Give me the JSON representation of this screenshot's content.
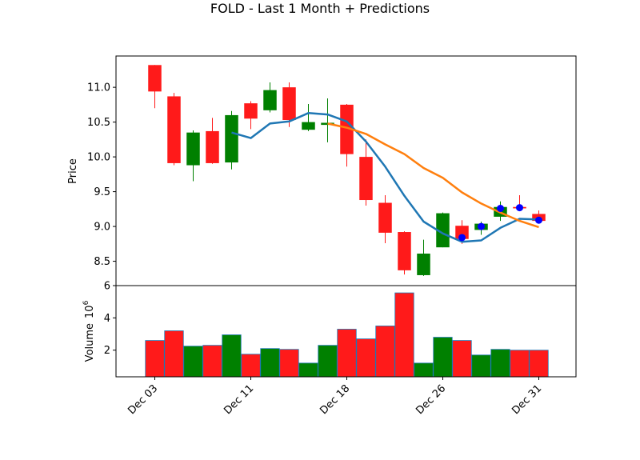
{
  "chart_data": {
    "type": "candlestick",
    "title": "FOLD - Last 1 Month + Predictions",
    "price_panel": {
      "ylabel": "Price",
      "ylim": [
        8.15,
        11.45
      ],
      "yticks": [
        "8.5",
        "9.0",
        "9.5",
        "10.0",
        "10.5",
        "11.0"
      ],
      "ytick_values": [
        8.5,
        9.0,
        9.5,
        10.0,
        10.5,
        11.0
      ]
    },
    "volume_panel": {
      "ylabel": "Volume",
      "ylabel_exp": "10",
      "ylabel_sup": "6",
      "ylim": [
        0.35,
        6.0
      ],
      "yticks": [
        "2",
        "4",
        "6"
      ],
      "ytick_values": [
        2,
        4,
        6
      ]
    },
    "xticks": [
      {
        "label": "Dec 03",
        "index": 0
      },
      {
        "label": "Dec 11",
        "index": 5
      },
      {
        "label": "Dec 18",
        "index": 10
      },
      {
        "label": "Dec 26",
        "index": 15
      },
      {
        "label": "Dec 31",
        "index": 20
      }
    ],
    "candles": [
      {
        "open": 11.32,
        "high": 11.32,
        "low": 10.7,
        "close": 10.94,
        "volume": 2.6
      },
      {
        "open": 10.87,
        "high": 10.92,
        "low": 9.88,
        "close": 9.91,
        "volume": 3.2
      },
      {
        "open": 9.88,
        "high": 10.38,
        "low": 9.65,
        "close": 10.35,
        "volume": 2.25
      },
      {
        "open": 10.37,
        "high": 10.56,
        "low": 9.9,
        "close": 9.91,
        "volume": 2.3
      },
      {
        "open": 9.92,
        "high": 10.66,
        "low": 9.82,
        "close": 10.6,
        "volume": 2.95
      },
      {
        "open": 10.77,
        "high": 10.8,
        "low": 10.4,
        "close": 10.55,
        "volume": 1.75
      },
      {
        "open": 10.67,
        "high": 11.07,
        "low": 10.64,
        "close": 10.96,
        "volume": 2.1
      },
      {
        "open": 11.0,
        "high": 11.07,
        "low": 10.43,
        "close": 10.53,
        "volume": 2.05
      },
      {
        "open": 10.39,
        "high": 10.76,
        "low": 10.37,
        "close": 10.5,
        "volume": 1.2
      },
      {
        "open": 10.46,
        "high": 10.84,
        "low": 10.21,
        "close": 10.49,
        "volume": 2.3
      },
      {
        "open": 10.75,
        "high": 10.76,
        "low": 9.86,
        "close": 10.04,
        "volume": 3.3
      },
      {
        "open": 10.0,
        "high": 10.25,
        "low": 9.3,
        "close": 9.38,
        "volume": 2.7
      },
      {
        "open": 9.34,
        "high": 9.45,
        "low": 8.76,
        "close": 8.91,
        "volume": 3.5
      },
      {
        "open": 8.92,
        "high": 8.93,
        "low": 8.31,
        "close": 8.37,
        "volume": 5.55
      },
      {
        "open": 8.3,
        "high": 8.81,
        "low": 8.29,
        "close": 8.61,
        "volume": 1.2
      },
      {
        "open": 8.7,
        "high": 9.2,
        "low": 8.7,
        "close": 9.19,
        "volume": 2.8
      },
      {
        "open": 9.01,
        "high": 9.09,
        "low": 8.75,
        "close": 8.82,
        "volume": 2.6
      },
      {
        "open": 8.95,
        "high": 9.07,
        "low": 8.88,
        "close": 9.04,
        "volume": 1.7
      },
      {
        "open": 9.14,
        "high": 9.36,
        "low": 9.08,
        "close": 9.28,
        "volume": 2.05
      },
      {
        "open": 9.28,
        "high": 9.45,
        "low": 9.25,
        "close": 9.26,
        "volume": 2.0
      },
      {
        "open": 9.18,
        "high": 9.23,
        "low": 9.08,
        "close": 9.08,
        "volume": 2.0
      }
    ],
    "series": [
      {
        "color": "#1f77b4",
        "start_index": 4,
        "values": [
          10.35,
          10.27,
          10.48,
          10.51,
          10.63,
          10.61,
          10.51,
          10.22,
          9.86,
          9.44,
          9.07,
          8.9,
          8.78,
          8.8,
          8.98,
          9.11,
          9.1
        ]
      },
      {
        "color": "#ff7f0e",
        "start_index": 9,
        "values": [
          10.48,
          10.42,
          10.33,
          10.18,
          10.04,
          9.84,
          9.7,
          9.49,
          9.33,
          9.2,
          9.08,
          8.99
        ]
      }
    ],
    "prediction_points": {
      "color": "#0000ff",
      "indices": [
        16,
        17,
        18,
        19,
        20
      ],
      "values": [
        8.84,
        9.0,
        9.26,
        9.27,
        9.09
      ]
    },
    "colors": {
      "up": "#008000",
      "down": "#ff1a1a",
      "volume_edge": "#1f77b4"
    }
  }
}
